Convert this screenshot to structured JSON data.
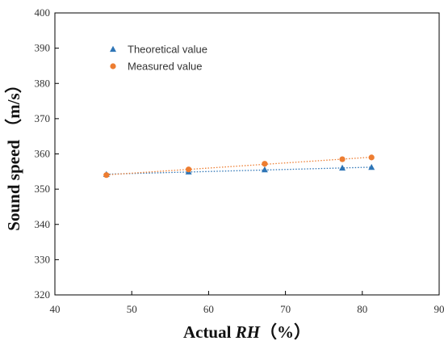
{
  "chart_data": {
    "type": "scatter",
    "xlabel": "Actual RH（%）",
    "xlabel_parts": {
      "prefix": "Actual ",
      "italic": "RH",
      "suffix": "（%）"
    },
    "ylabel": "Sound speed （m/s）",
    "xlim": [
      40,
      90
    ],
    "ylim": [
      320,
      400
    ],
    "x_ticks": [
      40,
      50,
      60,
      70,
      80,
      90
    ],
    "y_ticks": [
      320,
      330,
      340,
      350,
      360,
      370,
      380,
      390,
      400
    ],
    "grid": false,
    "legend_position": "top-left",
    "series": [
      {
        "name": "Theoretical value",
        "marker": "triangle",
        "color": "#2E75B6",
        "trendline": "linear-dotted",
        "x": [
          46.7,
          57.4,
          67.3,
          77.4,
          81.2
        ],
        "y": [
          354.2,
          354.9,
          355.5,
          356.0,
          356.2
        ]
      },
      {
        "name": "Measured value",
        "marker": "circle",
        "color": "#ED7D31",
        "trendline": "linear-dotted",
        "x": [
          46.7,
          57.4,
          67.3,
          77.4,
          81.2
        ],
        "y": [
          354.0,
          355.6,
          357.2,
          358.5,
          359.0
        ]
      }
    ]
  }
}
